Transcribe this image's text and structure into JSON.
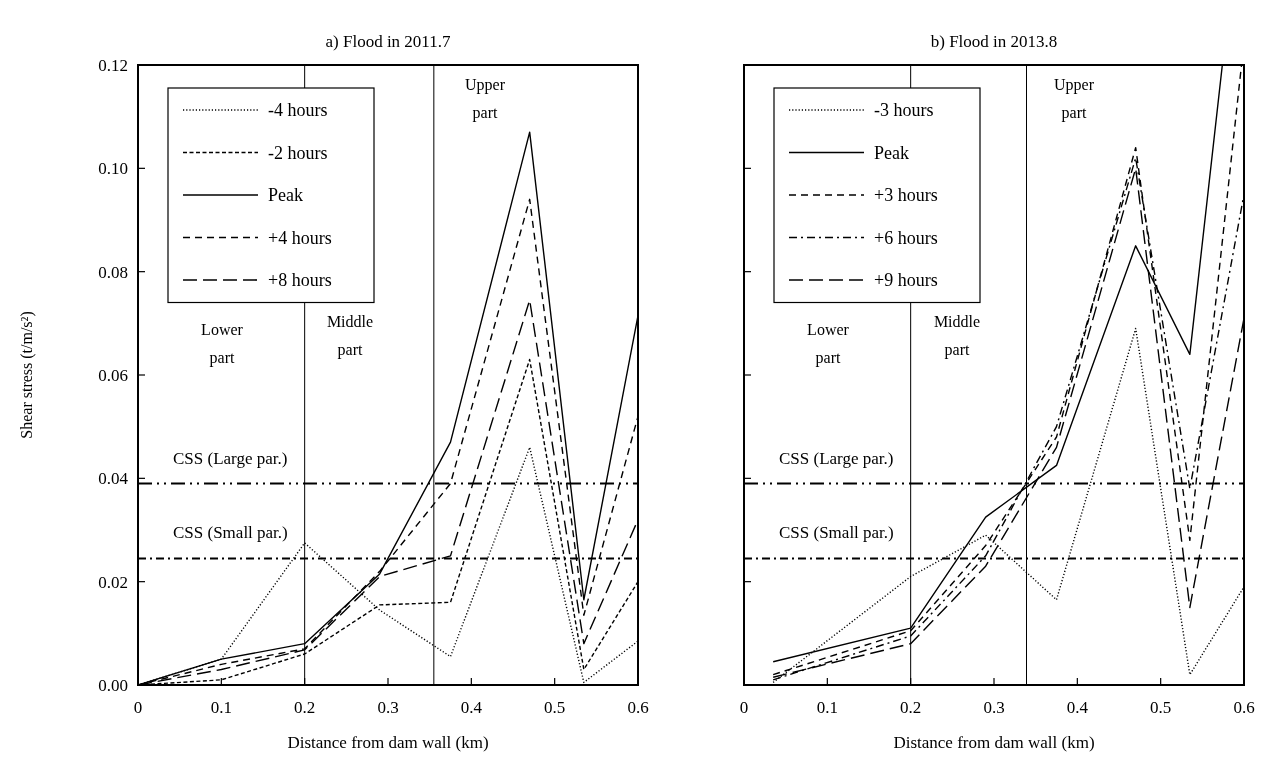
{
  "chart_data": [
    {
      "type": "line",
      "title": "a) Flood in 2011.7",
      "xlabel": "Distance  from dam wall (km)",
      "ylabel": "Shear stress (t/m/s²)",
      "xlim": [
        0,
        0.6
      ],
      "xticks": [
        0,
        0.1,
        0.2,
        0.3,
        0.4,
        0.5,
        0.6
      ],
      "ylim": [
        0,
        0.12
      ],
      "yticks": [
        {
          "value": 0,
          "label": "0.00"
        },
        {
          "value": 0.02,
          "label": "0.02"
        },
        {
          "value": 0.04,
          "label": "0.04"
        },
        {
          "value": 0.06,
          "label": "0.06"
        },
        {
          "value": 0.08,
          "label": "0.08"
        },
        {
          "value": 0.1,
          "label": "0.10"
        },
        {
          "value": 0.12,
          "label": "0.12"
        }
      ],
      "grid": false,
      "legend": "top left",
      "marker": "none",
      "series": [
        {
          "name": "-4 hours",
          "color": "#000000",
          "line_style": "dotted",
          "x": [
            0,
            0.1,
            0.2,
            0.29,
            0.375,
            0.47,
            0.535,
            0.6
          ],
          "values": [
            0,
            0.005,
            0.0275,
            0.0145,
            0.0055,
            0.046,
            0.0005,
            0.0085
          ]
        },
        {
          "name": "-2 hours",
          "color": "#000000",
          "line_style": "shortdash",
          "x": [
            0,
            0.1,
            0.2,
            0.29,
            0.375,
            0.47,
            0.535,
            0.6
          ],
          "values": [
            0,
            0.001,
            0.006,
            0.0155,
            0.016,
            0.063,
            0.003,
            0.02
          ]
        },
        {
          "name": "Peak",
          "color": "#000000",
          "line_style": "solid",
          "x": [
            0,
            0.1,
            0.2,
            0.29,
            0.375,
            0.47,
            0.535,
            0.6
          ],
          "values": [
            0,
            0.005,
            0.008,
            0.0215,
            0.047,
            0.107,
            0.0165,
            0.0715
          ]
        },
        {
          "name": "+4 hours",
          "color": "#000000",
          "line_style": "dashed",
          "x": [
            0,
            0.1,
            0.2,
            0.29,
            0.375,
            0.47,
            0.535,
            0.6
          ],
          "values": [
            0,
            0.004,
            0.007,
            0.022,
            0.039,
            0.094,
            0.0135,
            0.052
          ]
        },
        {
          "name": "+8 hours",
          "color": "#000000",
          "line_style": "longdash",
          "x": [
            0,
            0.1,
            0.2,
            0.29,
            0.375,
            0.47,
            0.535,
            0.6
          ],
          "values": [
            0,
            0.003,
            0.0068,
            0.021,
            0.025,
            0.0745,
            0.008,
            0.032
          ]
        }
      ],
      "ref_lines": [
        {
          "axis": "x",
          "value": 0.2,
          "color": "#000000",
          "line_style": "solid"
        },
        {
          "axis": "x",
          "value": 0.355,
          "color": "#000000",
          "line_style": "solid"
        },
        {
          "axis": "y",
          "value": 0.039,
          "label": "CSS (Large par.)",
          "color": "#000000",
          "line_style": "dashdotdot"
        },
        {
          "axis": "y",
          "value": 0.0245,
          "label": "CSS (Small par.)",
          "color": "#000000",
          "line_style": "dashdot"
        }
      ],
      "annotations": [
        "Lower part",
        "Middle part",
        "Upper part"
      ]
    },
    {
      "type": "line",
      "title": "b) Flood in 2013.8",
      "xlabel": "Distance  from dam wall (km)",
      "xlim": [
        0,
        0.6
      ],
      "xticks": [
        0,
        0.1,
        0.2,
        0.3,
        0.4,
        0.5,
        0.6
      ],
      "ylim": [
        0,
        0.12
      ],
      "yticks": [
        0,
        0.02,
        0.04,
        0.06,
        0.08,
        0.1,
        0.12
      ],
      "tick_labels": "x",
      "grid": false,
      "legend": "top left",
      "marker": "none",
      "series": [
        {
          "name": "-3 hours",
          "color": "#000000",
          "line_style": "dotted",
          "x": [
            0.035,
            0.2,
            0.29,
            0.375,
            0.47,
            0.535,
            0.6
          ],
          "values": [
            0.0005,
            0.021,
            0.029,
            0.0165,
            0.069,
            0.002,
            0.019
          ]
        },
        {
          "name": "Peak",
          "color": "#000000",
          "line_style": "solid",
          "x": [
            0.035,
            0.2,
            0.29,
            0.375,
            0.47,
            0.535,
            0.574
          ],
          "values": [
            0.0045,
            0.011,
            0.0325,
            0.0425,
            0.085,
            0.064,
            0.12
          ]
        },
        {
          "name": "+3 hours",
          "color": "#000000",
          "line_style": "dashed",
          "x": [
            0.035,
            0.2,
            0.29,
            0.375,
            0.47,
            0.535,
            0.597
          ],
          "values": [
            0.002,
            0.0105,
            0.027,
            0.048,
            0.104,
            0.028,
            0.12
          ]
        },
        {
          "name": "+6 hours",
          "color": "#000000",
          "line_style": "dashdot",
          "x": [
            0.035,
            0.2,
            0.29,
            0.375,
            0.47,
            0.535,
            0.6
          ],
          "values": [
            0.001,
            0.0095,
            0.025,
            0.05,
            0.102,
            0.038,
            0.095
          ]
        },
        {
          "name": "+9 hours",
          "color": "#000000",
          "line_style": "longdash",
          "x": [
            0.035,
            0.2,
            0.29,
            0.375,
            0.47,
            0.535,
            0.6
          ],
          "values": [
            0.0015,
            0.008,
            0.023,
            0.046,
            0.1,
            0.015,
            0.071
          ]
        }
      ],
      "ref_lines": [
        {
          "axis": "x",
          "value": 0.2,
          "color": "#000000",
          "line_style": "solid"
        },
        {
          "axis": "x",
          "value": 0.339,
          "color": "#000000",
          "line_style": "solid"
        },
        {
          "axis": "y",
          "value": 0.039,
          "label": "CSS (Large par.)",
          "color": "#000000",
          "line_style": "dashdotdot"
        },
        {
          "axis": "y",
          "value": 0.0245,
          "label": "CSS (Small par.)",
          "color": "#000000",
          "line_style": "dashdot"
        }
      ],
      "annotations": [
        "Lower part",
        "Middle part",
        "Upper part"
      ]
    }
  ]
}
